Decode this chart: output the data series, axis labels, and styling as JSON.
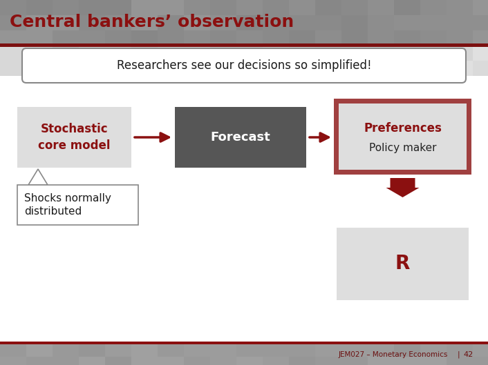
{
  "title": "Central bankers’ observation",
  "subtitle_text": "Researchers see our decisions so simplified!",
  "box1_text": "Stochastic\ncore model",
  "box1_color": "#DEDEDE",
  "box1_text_color": "#8B1010",
  "box2_text": "Forecast",
  "box2_color": "#565656",
  "box2_text_color": "#FFFFFF",
  "box3_bg": "#DEDEDE",
  "box3_border": "#A04040",
  "box3_text_color1": "#8B1010",
  "box3_text_color2": "#222222",
  "box4_text": "R",
  "box4_color": "#DEDEDE",
  "box4_text_color": "#8B1010",
  "callout_text": "Shocks normally\ndistributed",
  "callout_bg": "#FFFFFF",
  "callout_border": "#888888",
  "arrow_color": "#8B1010",
  "footer_text": "JEM027 – Monetary Economics",
  "footer_page": "42",
  "footer_color": "#6B1010",
  "slide_bg": "#FFFFFF",
  "header_gray": "#8C8C8C",
  "header_red": "#7B1010",
  "footer_bar_color": "#9A9A9A",
  "footer_red_line": "#8B1010"
}
